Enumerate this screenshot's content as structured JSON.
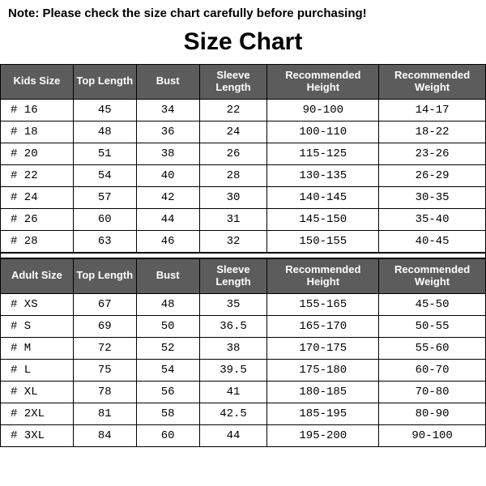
{
  "note": "Note: Please check the size chart carefully before purchasing!",
  "title": "Size Chart",
  "colors": {
    "header_bg": "#5c5c5c",
    "header_text": "#ffffff",
    "border": "#000000",
    "bg": "#ffffff",
    "text": "#000000"
  },
  "tables": [
    {
      "columns": [
        "Kids Size",
        "Top Length",
        "Bust",
        "Sleeve Length",
        "Recommended Height",
        "Recommended Weight"
      ],
      "col_widths_pct": [
        15,
        13,
        13,
        14,
        23,
        22
      ],
      "header_fontsize": 13,
      "cell_fontsize": 14,
      "cell_font": "monospace",
      "rows": [
        [
          "# 16",
          "45",
          "34",
          "22",
          "90-100",
          "14-17"
        ],
        [
          "# 18",
          "48",
          "36",
          "24",
          "100-110",
          "18-22"
        ],
        [
          "# 20",
          "51",
          "38",
          "26",
          "115-125",
          "23-26"
        ],
        [
          "# 22",
          "54",
          "40",
          "28",
          "130-135",
          "26-29"
        ],
        [
          "# 24",
          "57",
          "42",
          "30",
          "140-145",
          "30-35"
        ],
        [
          "# 26",
          "60",
          "44",
          "31",
          "145-150",
          "35-40"
        ],
        [
          "# 28",
          "63",
          "46",
          "32",
          "150-155",
          "40-45"
        ]
      ]
    },
    {
      "columns": [
        "Adult Size",
        "Top Length",
        "Bust",
        "Sleeve Length",
        "Recommended Height",
        "Recommended Weight"
      ],
      "col_widths_pct": [
        15,
        13,
        13,
        14,
        23,
        22
      ],
      "header_fontsize": 13,
      "cell_fontsize": 14,
      "cell_font": "monospace",
      "rows": [
        [
          "# XS",
          "67",
          "48",
          "35",
          "155-165",
          "45-50"
        ],
        [
          "# S",
          "69",
          "50",
          "36.5",
          "165-170",
          "50-55"
        ],
        [
          "# M",
          "72",
          "52",
          "38",
          "170-175",
          "55-60"
        ],
        [
          "# L",
          "75",
          "54",
          "39.5",
          "175-180",
          "60-70"
        ],
        [
          "# XL",
          "78",
          "56",
          "41",
          "180-185",
          "70-80"
        ],
        [
          "# 2XL",
          "81",
          "58",
          "42.5",
          "185-195",
          "80-90"
        ],
        [
          "# 3XL",
          "84",
          "60",
          "44",
          "195-200",
          "90-100"
        ]
      ]
    }
  ]
}
